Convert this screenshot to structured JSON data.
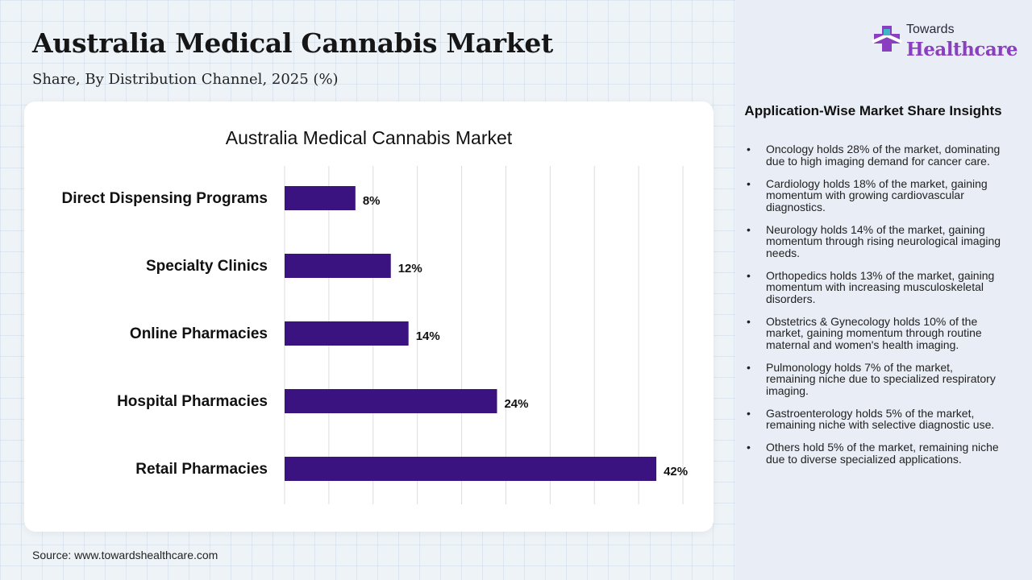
{
  "header": {
    "title": "Australia Medical Cannabis Market",
    "subtitle": "Share, By Distribution Channel, 2025 (%)"
  },
  "logo": {
    "line1": "Towards",
    "line2": "Healthcare",
    "accent": "#8a3fc0",
    "icon": "medical-cross-icon"
  },
  "chart_data": {
    "type": "bar",
    "orientation": "horizontal",
    "title": "Australia Medical Cannabis Market",
    "categories": [
      "Direct Dispensing Programs",
      "Specialty Clinics",
      "Online Pharmacies",
      "Hospital Pharmacies",
      "Retail Pharmacies"
    ],
    "values": [
      8,
      12,
      14,
      24,
      42
    ],
    "value_labels": [
      "8%",
      "12%",
      "14%",
      "24%",
      "42%"
    ],
    "xlim": [
      0,
      45
    ],
    "grid": true,
    "bar_color": "#3a1380"
  },
  "insights": {
    "title": "Application-Wise Market Share Insights",
    "items": [
      "Oncology holds 28% of the market, dominating due to high imaging demand for cancer care.",
      "Cardiology holds 18% of the market, gaining momentum with growing cardiovascular diagnostics.",
      "Neurology holds 14% of the market, gaining momentum through rising neurological imaging needs.",
      "Orthopedics holds 13% of the market, gaining momentum with increasing musculoskeletal disorders.",
      "Obstetrics & Gynecology holds 10% of the market, gaining momentum through routine maternal and women's health imaging.",
      "Pulmonology holds 7% of the market, remaining niche due to specialized respiratory imaging.",
      "Gastroenterology holds 5% of the market, remaining niche with selective diagnostic use.",
      "Others hold 5% of the market, remaining niche due to diverse specialized applications."
    ]
  },
  "source": "Source: www.towardshealthcare.com"
}
